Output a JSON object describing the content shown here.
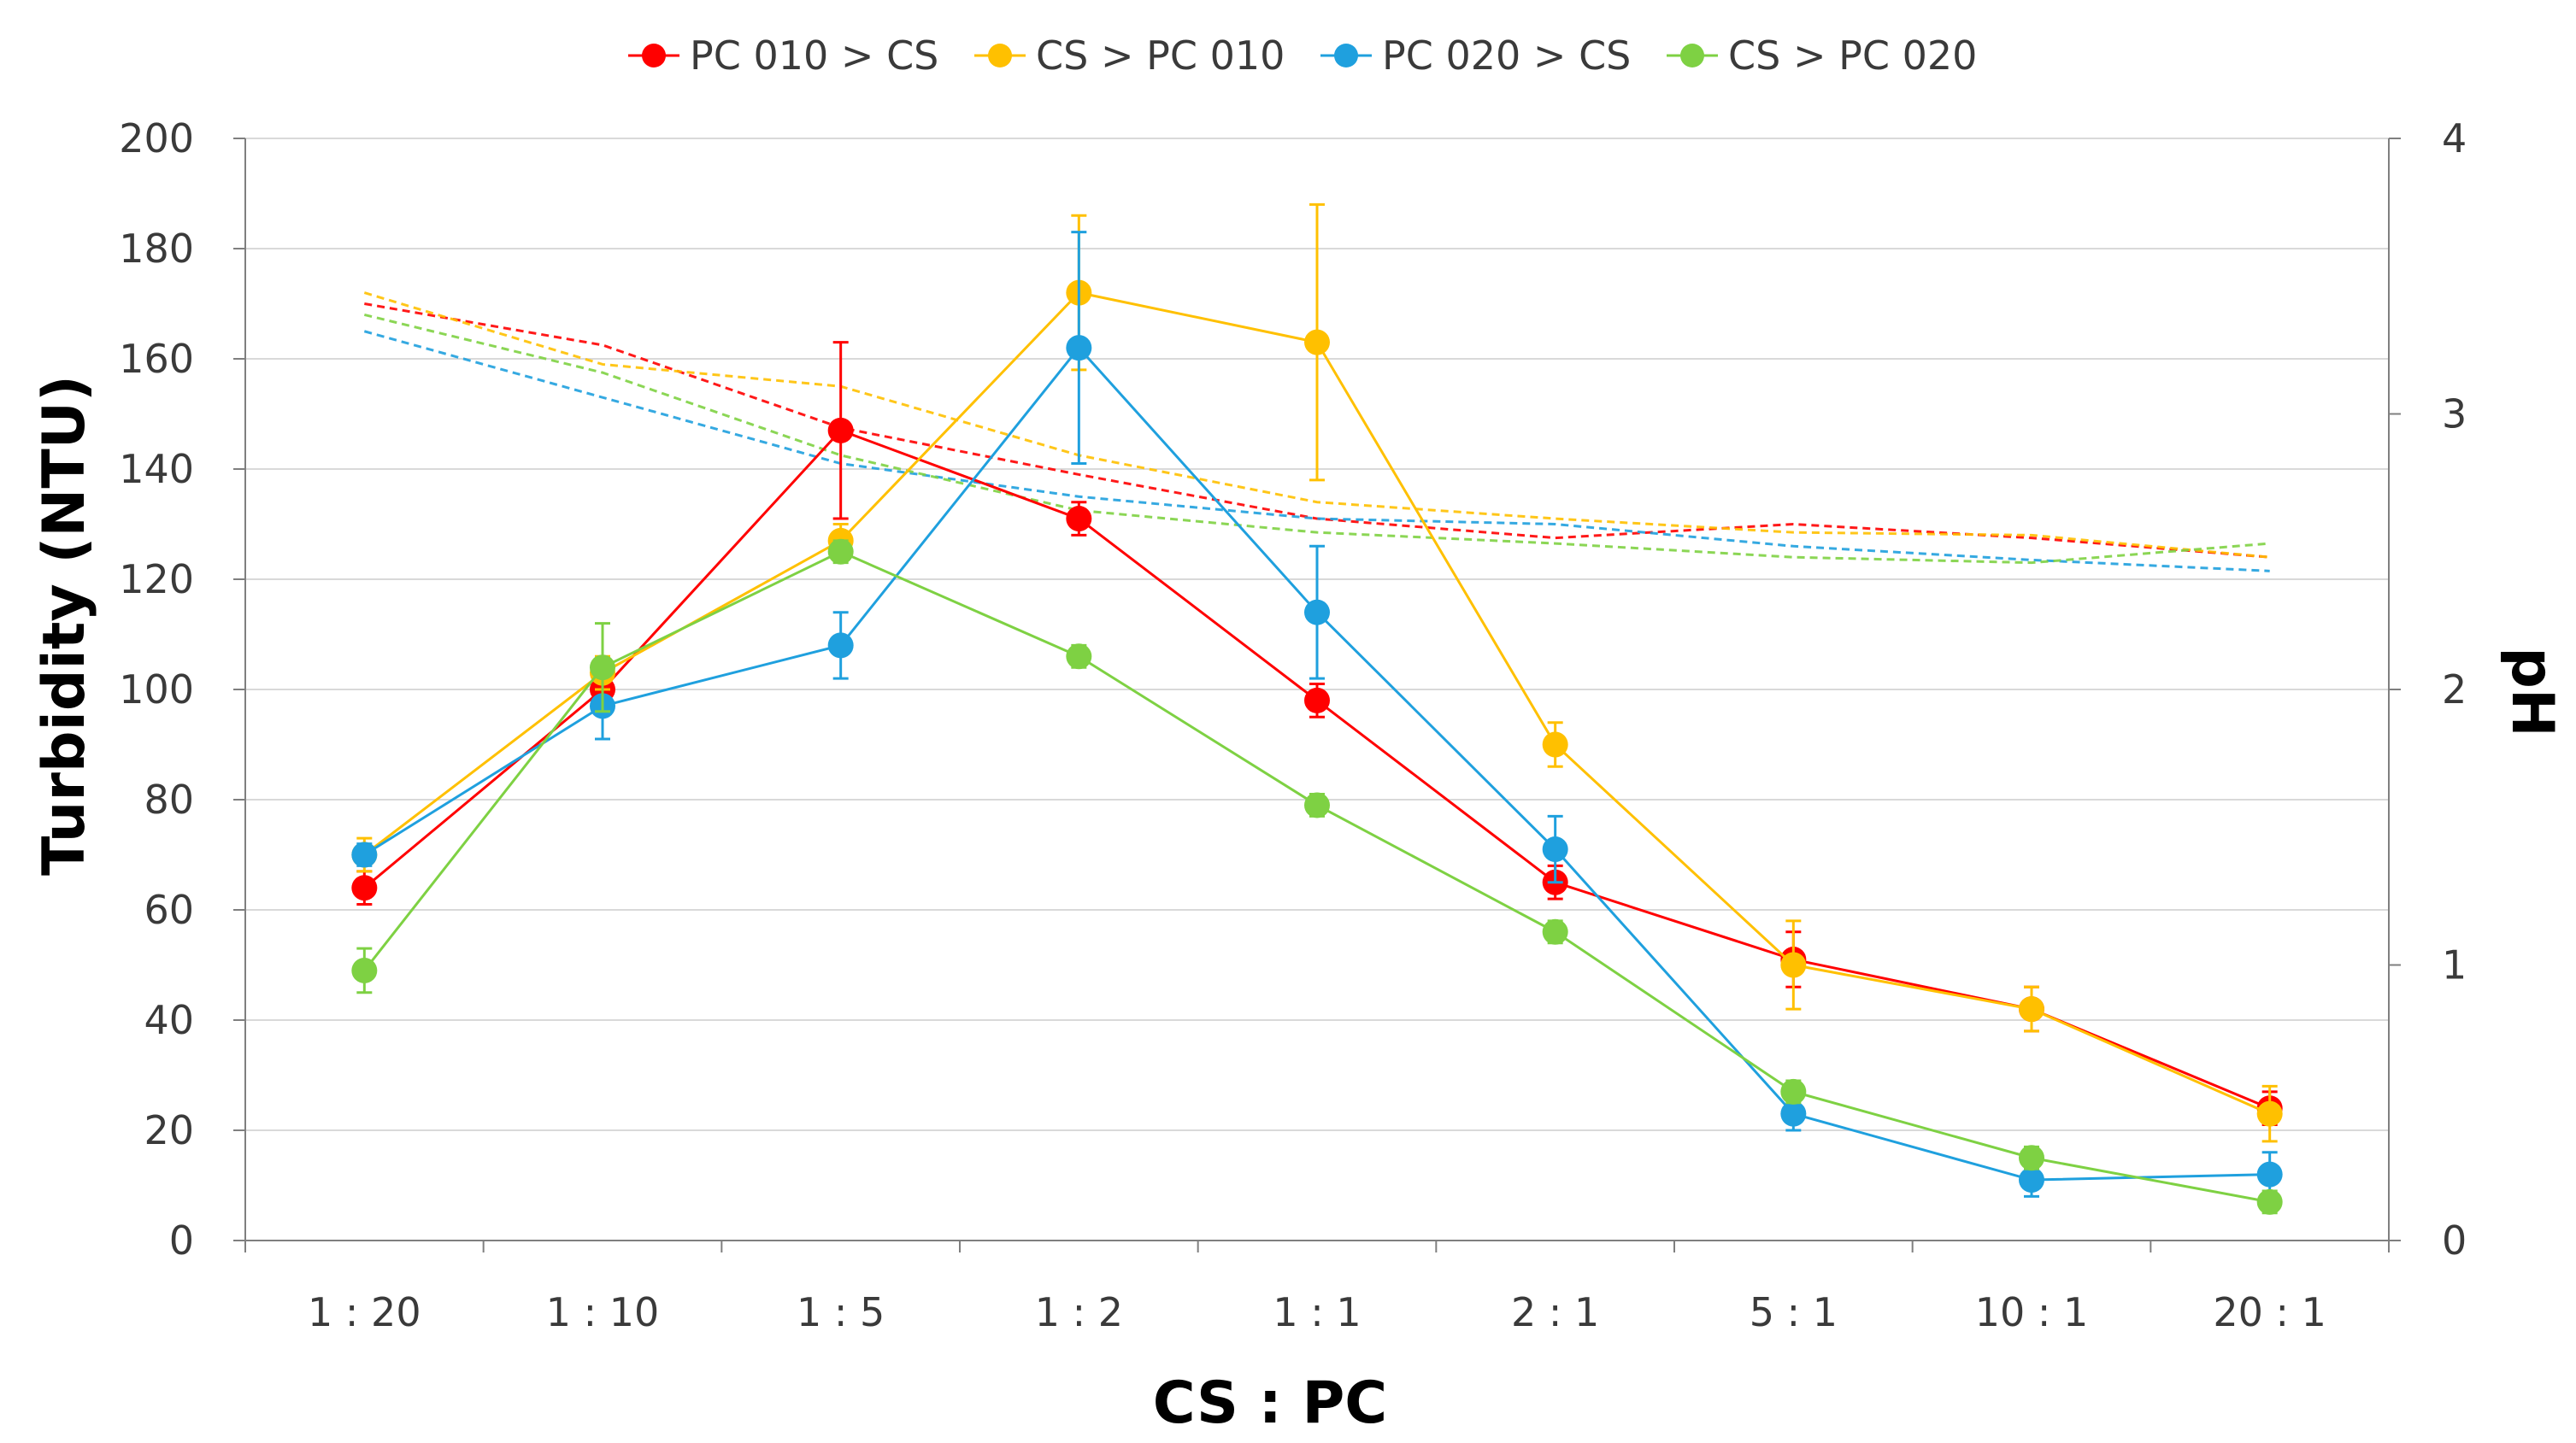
{
  "chart_data": {
    "type": "line",
    "title": "",
    "xlabel": "CS : PC",
    "ylabel": "Turbidity (NTU)",
    "y2label": "pH",
    "categories": [
      "1 : 20",
      "1 : 10",
      "1 : 5",
      "1 : 2",
      "1 : 1",
      "2 : 1",
      "5 : 1",
      "10 : 1",
      "20 : 1"
    ],
    "ylim": [
      0,
      200
    ],
    "yticks": [
      0,
      20,
      40,
      60,
      80,
      100,
      120,
      140,
      160,
      180,
      200
    ],
    "y2lim": [
      0,
      4
    ],
    "y2ticks": [
      0,
      1,
      2,
      3,
      4
    ],
    "grid": true,
    "legend_position": "top",
    "series": [
      {
        "name": "PC 010 > CS",
        "color": "#ff0000",
        "turbidity": [
          64,
          100,
          147,
          131,
          98,
          65,
          51,
          42,
          24
        ],
        "error": [
          3,
          4,
          16,
          3,
          3,
          3,
          5,
          4,
          3
        ],
        "ph": [
          3.4,
          3.25,
          2.95,
          2.78,
          2.62,
          2.55,
          2.6,
          2.55,
          2.48
        ]
      },
      {
        "name": "CS > PC 010",
        "color": "#ffc000",
        "turbidity": [
          70,
          103,
          127,
          172,
          163,
          90,
          50,
          42,
          23
        ],
        "error": [
          3,
          3,
          3,
          14,
          25,
          4,
          8,
          4,
          5
        ],
        "ph": [
          3.44,
          3.18,
          3.1,
          2.85,
          2.68,
          2.62,
          2.57,
          2.56,
          2.48
        ]
      },
      {
        "name": "PC 020 > CS",
        "color": "#1fa0de",
        "turbidity": [
          70,
          97,
          108,
          162,
          114,
          71,
          23,
          11,
          12
        ],
        "error": [
          2,
          6,
          6,
          21,
          12,
          6,
          3,
          3,
          4
        ],
        "ph": [
          3.3,
          3.06,
          2.82,
          2.7,
          2.62,
          2.6,
          2.52,
          2.47,
          2.43
        ]
      },
      {
        "name": "CS > PC 020",
        "color": "#7ed143",
        "turbidity": [
          49,
          104,
          125,
          106,
          79,
          56,
          27,
          15,
          7
        ],
        "error": [
          4,
          8,
          2,
          2,
          2,
          2,
          2,
          2,
          2
        ],
        "ph": [
          3.36,
          3.15,
          2.85,
          2.65,
          2.57,
          2.53,
          2.48,
          2.46,
          2.53
        ]
      }
    ]
  }
}
